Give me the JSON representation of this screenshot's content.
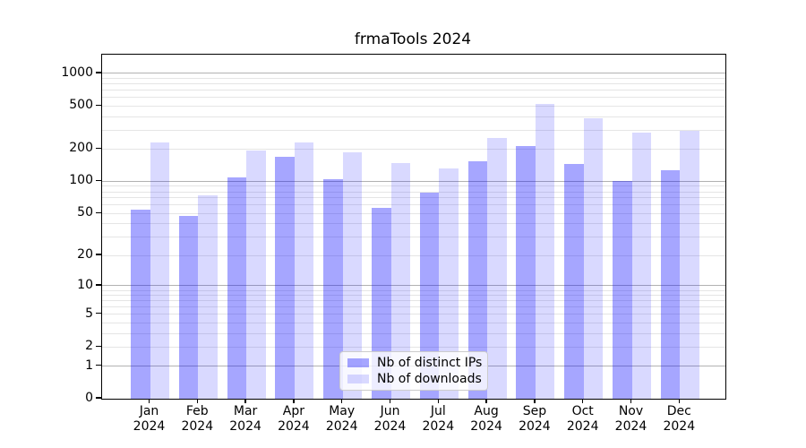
{
  "title": "frmaTools 2024",
  "chart_data": {
    "type": "bar",
    "title": "frmaTools 2024",
    "categories": [
      "Jan\n2024",
      "Feb\n2024",
      "Mar\n2024",
      "Apr\n2024",
      "May\n2024",
      "Jun\n2024",
      "Jul\n2024",
      "Aug\n2024",
      "Sep\n2024",
      "Oct\n2024",
      "Nov\n2024",
      "Dec\n2024"
    ],
    "series": [
      {
        "name": "Nb of distinct IPs",
        "color": "rgba(0,0,255,0.35)",
        "values": [
          54,
          48,
          110,
          170,
          104,
          57,
          78,
          155,
          215,
          145,
          101,
          126
        ]
      },
      {
        "name": "Nb of downloads",
        "color": "rgba(0,0,255,0.15)",
        "values": [
          232,
          74,
          195,
          232,
          185,
          147,
          133,
          255,
          520,
          385,
          285,
          295
        ]
      }
    ],
    "y_ticks": [
      0,
      1,
      2,
      5,
      10,
      20,
      50,
      100,
      200,
      500,
      1000
    ],
    "y_scale": "log1p",
    "ylim": [
      0,
      1500
    ],
    "xlabel": "",
    "ylabel": "",
    "grid": "major-and-minor",
    "legend_position": "lower center",
    "colors": {
      "major_grid": "#b2b2b2",
      "minor_grid": "#e5e5e5",
      "spine": "#000000"
    }
  }
}
